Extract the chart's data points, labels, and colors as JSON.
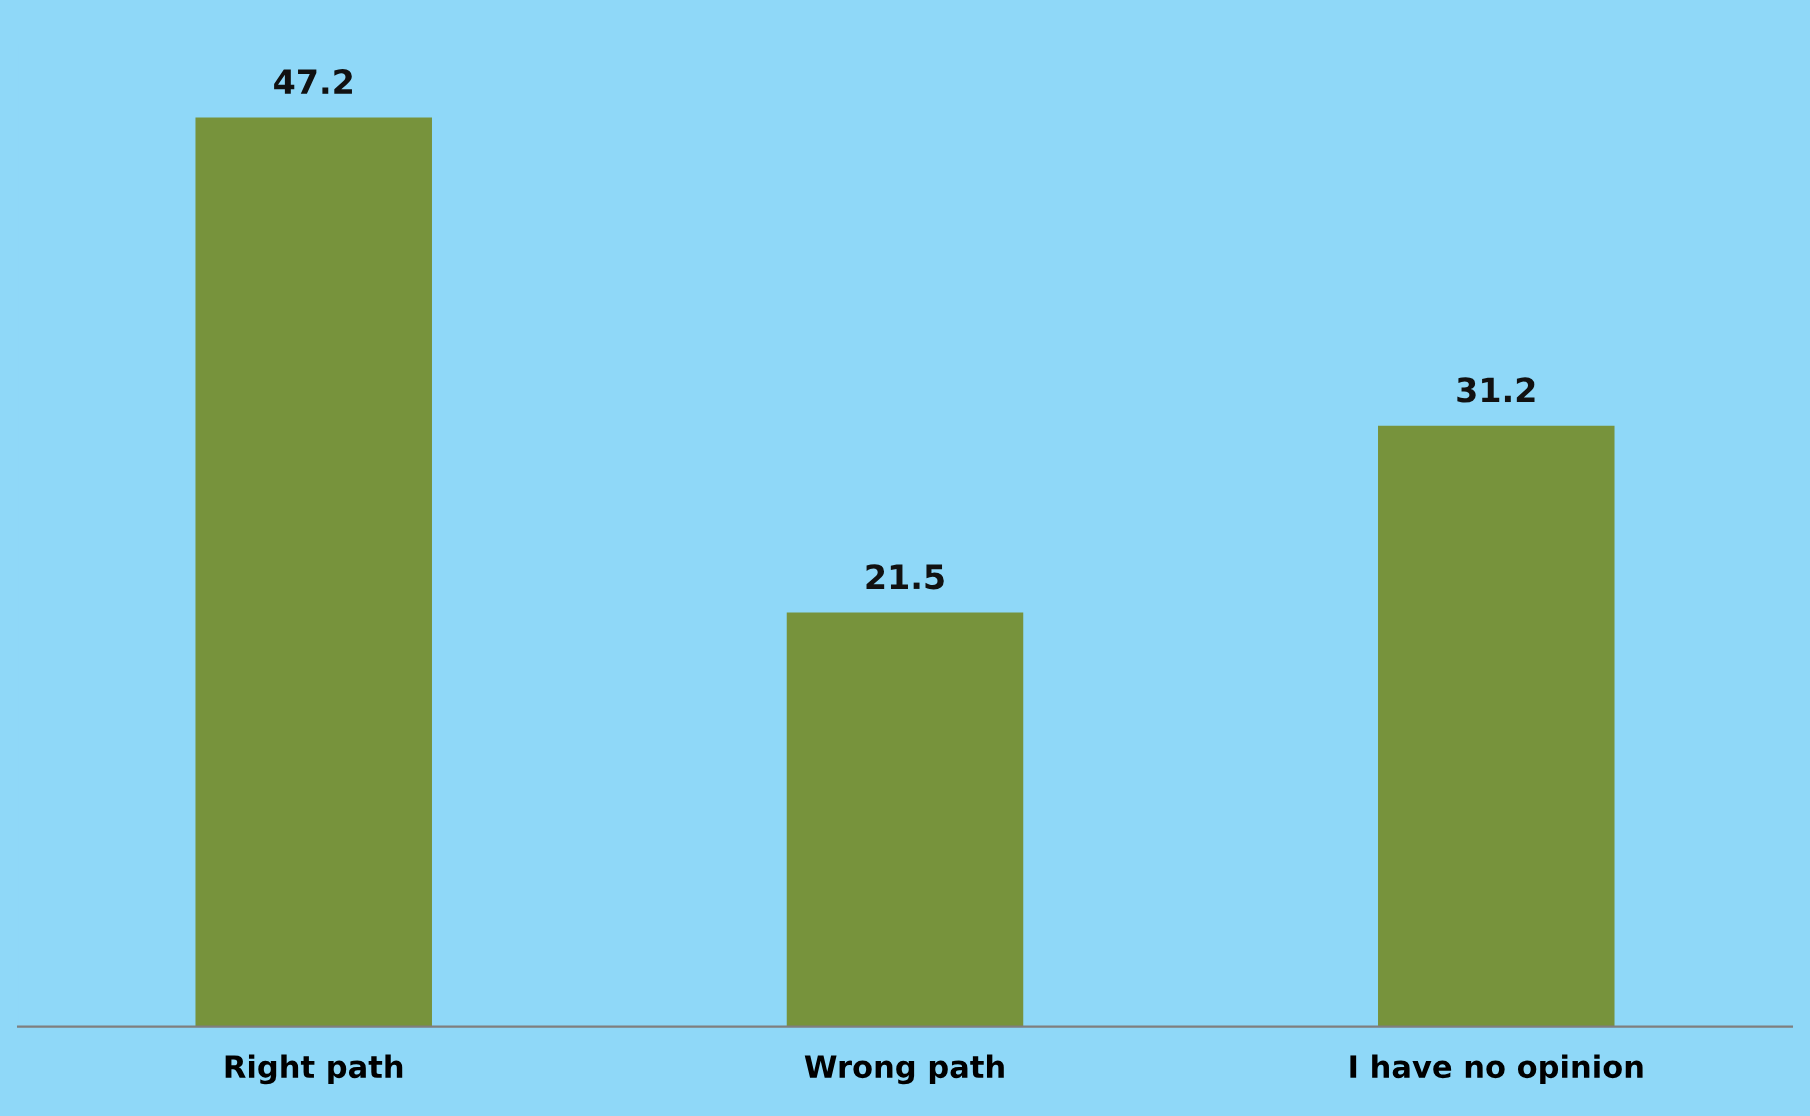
{
  "chart_data": {
    "type": "bar",
    "categories": [
      "Right path",
      "Wrong path",
      "I have no opinion"
    ],
    "values": [
      47.2,
      21.5,
      31.2
    ],
    "color": "#77933c",
    "data_labels": true,
    "grid": false,
    "legend": false
  }
}
